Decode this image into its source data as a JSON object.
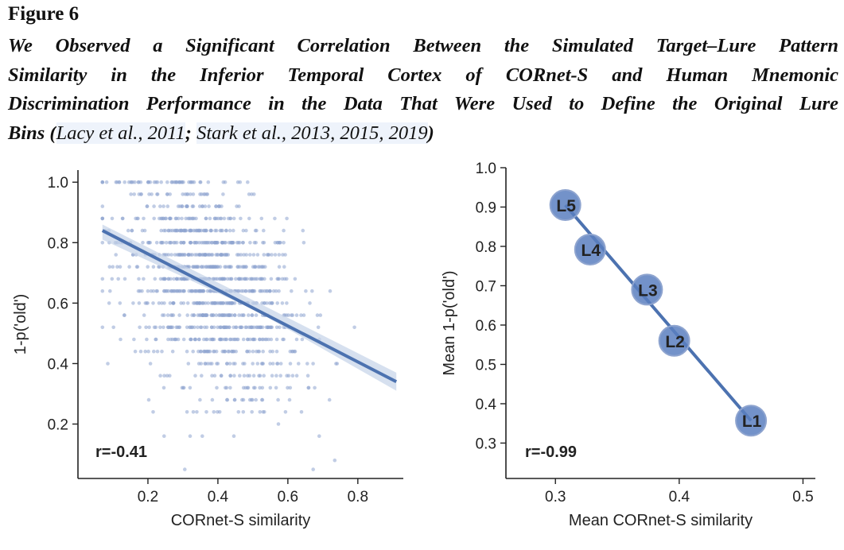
{
  "figure": {
    "label": "Figure 6",
    "title_lines": [
      "We Observed a Significant Correlation Between the Simulated Target–Lure Pattern",
      "Similarity in the Inferior Temporal Cortex of CORnet-S and Human Mnemonic",
      "Discrimination Performance in the Data That Were Used to Define the Original Lure"
    ],
    "title_last": {
      "pre": "Bins (",
      "cite1": "Lacy et al., 2011",
      "sep1": "; ",
      "cite2": "Stark et al., 2013, 2015, 2019",
      "post": ")"
    }
  },
  "colors": {
    "primary": "#4c72b0",
    "band": "#c5d3e8",
    "axis": "#222222"
  },
  "chart_data": [
    {
      "type": "scatter",
      "xlabel": "CORnet-S similarity",
      "ylabel": "1-p('old')",
      "xlim": [
        0.0,
        0.93
      ],
      "ylim": [
        0.02,
        1.04
      ],
      "xticks": [
        0.2,
        0.4,
        0.6,
        0.8
      ],
      "xtick_labels": [
        "0.2",
        "0.4",
        "0.6",
        "0.8"
      ],
      "yticks": [
        0.2,
        0.4,
        0.6,
        0.8,
        1.0
      ],
      "ytick_labels": [
        "0.2",
        "0.4",
        "0.6",
        "0.8",
        "1.0"
      ],
      "annotation": "r=-0.41",
      "regression_line": {
        "x": [
          0.07,
          0.91
        ],
        "y": [
          0.84,
          0.34
        ]
      },
      "confidence_band": {
        "x": [
          0.07,
          0.5,
          0.91
        ],
        "upper": [
          0.86,
          0.61,
          0.37
        ],
        "lower": [
          0.81,
          0.58,
          0.31
        ]
      },
      "points_description_count": 1200,
      "point_cloud": {
        "x_center": 0.38,
        "x_sd": 0.13,
        "y_center": 0.65,
        "y_sd": 0.19,
        "slope": -0.6
      }
    },
    {
      "type": "scatter",
      "xlabel": "Mean CORnet-S similarity",
      "ylabel": "Mean 1-p('old')",
      "xlim": [
        0.26,
        0.51
      ],
      "ylim": [
        0.21,
        1.0
      ],
      "xticks": [
        0.3,
        0.4,
        0.5
      ],
      "xtick_labels": [
        "0.3",
        "0.4",
        "0.5"
      ],
      "yticks": [
        0.3,
        0.4,
        0.5,
        0.6,
        0.7,
        0.8,
        0.9,
        1.0
      ],
      "ytick_labels": [
        "0.3",
        "0.4",
        "0.5",
        "0.6",
        "0.7",
        "0.8",
        "0.9",
        "1.0"
      ],
      "annotation": "r=-0.99",
      "points": [
        {
          "label": "L5",
          "x": 0.308,
          "y": 0.905
        },
        {
          "label": "L4",
          "x": 0.328,
          "y": 0.792
        },
        {
          "label": "L3",
          "x": 0.374,
          "y": 0.69
        },
        {
          "label": "L2",
          "x": 0.396,
          "y": 0.56
        },
        {
          "label": "L1",
          "x": 0.458,
          "y": 0.357
        }
      ],
      "regression_line": {
        "x": [
          0.308,
          0.458
        ],
        "y": [
          0.905,
          0.357
        ]
      }
    }
  ]
}
